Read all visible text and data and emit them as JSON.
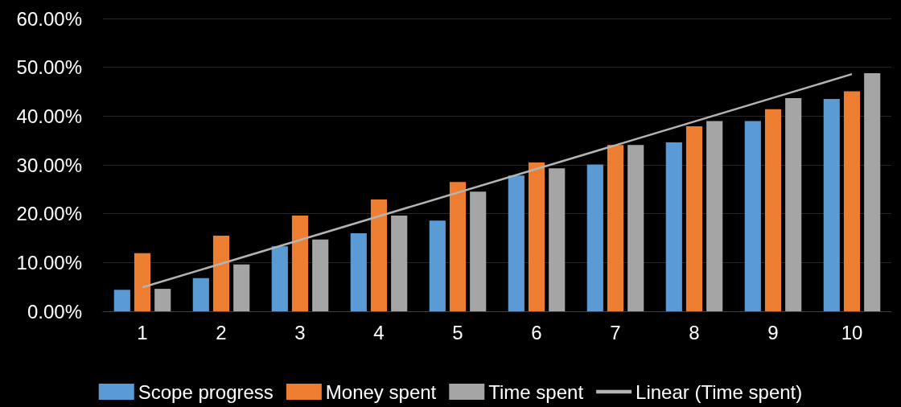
{
  "chart_data": {
    "type": "bar",
    "categories": [
      "1",
      "2",
      "3",
      "4",
      "5",
      "6",
      "7",
      "8",
      "9",
      "10"
    ],
    "series": [
      {
        "name": "Scope progress",
        "color": "#5b9bd5",
        "values": [
          4.4,
          6.8,
          13.3,
          16,
          18.6,
          27.8,
          30.1,
          34.6,
          39,
          43.5
        ]
      },
      {
        "name": "Money spent",
        "color": "#ed7d31",
        "values": [
          11.9,
          15.5,
          19.6,
          22.9,
          26.5,
          30.5,
          34.1,
          37.9,
          41.4,
          45.1
        ]
      },
      {
        "name": "Time spent",
        "color": "#a5a5a5",
        "values": [
          4.6,
          9.6,
          14.7,
          19.6,
          24.5,
          29.3,
          34.1,
          39,
          43.7,
          48.8
        ]
      },
      {
        "name": "Linear (Time spent)",
        "type": "line",
        "color": "#b4b4b4",
        "x": [
          "1",
          "10"
        ],
        "values": [
          4.9,
          48.6
        ]
      }
    ],
    "ylim": [
      0,
      60
    ],
    "yticks": [
      {
        "value": 0,
        "label": "0.00%"
      },
      {
        "value": 10,
        "label": "10.00%"
      },
      {
        "value": 20,
        "label": "20.00%"
      },
      {
        "value": 30,
        "label": "30.00%"
      },
      {
        "value": 40,
        "label": "40.00%"
      },
      {
        "value": 50,
        "label": "50.00%"
      },
      {
        "value": 60,
        "label": "60.00%"
      }
    ],
    "grid": "y",
    "legend": "bottom",
    "marker": "none"
  }
}
